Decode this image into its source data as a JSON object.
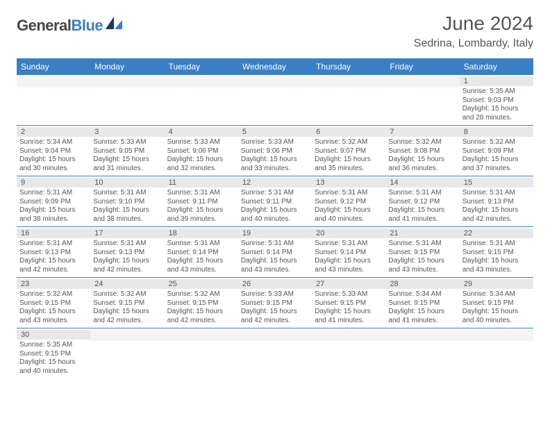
{
  "brand": {
    "general": "General",
    "blue": "Blue"
  },
  "colors": {
    "accent": "#3b7fc4",
    "band": "#e8e8e8",
    "text": "#555555",
    "divider": "#3b7fc4"
  },
  "fonts": {
    "title_pt": 28,
    "location_pt": 16,
    "weekday_pt": 12,
    "daynum_pt": 11,
    "body_pt": 10
  },
  "title": "June 2024",
  "location": "Sedrina, Lombardy, Italy",
  "weekdays": [
    "Sunday",
    "Monday",
    "Tuesday",
    "Wednesday",
    "Thursday",
    "Friday",
    "Saturday"
  ],
  "calendar": {
    "rows": 6,
    "cols": 7,
    "leading_blanks": 6,
    "days": [
      {
        "n": 1,
        "sunrise": "5:35 AM",
        "sunset": "9:03 PM",
        "daylight": "15 hours and 28 minutes."
      },
      {
        "n": 2,
        "sunrise": "5:34 AM",
        "sunset": "9:04 PM",
        "daylight": "15 hours and 30 minutes."
      },
      {
        "n": 3,
        "sunrise": "5:33 AM",
        "sunset": "9:05 PM",
        "daylight": "15 hours and 31 minutes."
      },
      {
        "n": 4,
        "sunrise": "5:33 AM",
        "sunset": "9:06 PM",
        "daylight": "15 hours and 32 minutes."
      },
      {
        "n": 5,
        "sunrise": "5:33 AM",
        "sunset": "9:06 PM",
        "daylight": "15 hours and 33 minutes."
      },
      {
        "n": 6,
        "sunrise": "5:32 AM",
        "sunset": "9:07 PM",
        "daylight": "15 hours and 35 minutes."
      },
      {
        "n": 7,
        "sunrise": "5:32 AM",
        "sunset": "9:08 PM",
        "daylight": "15 hours and 36 minutes."
      },
      {
        "n": 8,
        "sunrise": "5:32 AM",
        "sunset": "9:09 PM",
        "daylight": "15 hours and 37 minutes."
      },
      {
        "n": 9,
        "sunrise": "5:31 AM",
        "sunset": "9:09 PM",
        "daylight": "15 hours and 38 minutes."
      },
      {
        "n": 10,
        "sunrise": "5:31 AM",
        "sunset": "9:10 PM",
        "daylight": "15 hours and 38 minutes."
      },
      {
        "n": 11,
        "sunrise": "5:31 AM",
        "sunset": "9:11 PM",
        "daylight": "15 hours and 39 minutes."
      },
      {
        "n": 12,
        "sunrise": "5:31 AM",
        "sunset": "9:11 PM",
        "daylight": "15 hours and 40 minutes."
      },
      {
        "n": 13,
        "sunrise": "5:31 AM",
        "sunset": "9:12 PM",
        "daylight": "15 hours and 40 minutes."
      },
      {
        "n": 14,
        "sunrise": "5:31 AM",
        "sunset": "9:12 PM",
        "daylight": "15 hours and 41 minutes."
      },
      {
        "n": 15,
        "sunrise": "5:31 AM",
        "sunset": "9:13 PM",
        "daylight": "15 hours and 42 minutes."
      },
      {
        "n": 16,
        "sunrise": "5:31 AM",
        "sunset": "9:13 PM",
        "daylight": "15 hours and 42 minutes."
      },
      {
        "n": 17,
        "sunrise": "5:31 AM",
        "sunset": "9:13 PM",
        "daylight": "15 hours and 42 minutes."
      },
      {
        "n": 18,
        "sunrise": "5:31 AM",
        "sunset": "9:14 PM",
        "daylight": "15 hours and 43 minutes."
      },
      {
        "n": 19,
        "sunrise": "5:31 AM",
        "sunset": "9:14 PM",
        "daylight": "15 hours and 43 minutes."
      },
      {
        "n": 20,
        "sunrise": "5:31 AM",
        "sunset": "9:14 PM",
        "daylight": "15 hours and 43 minutes."
      },
      {
        "n": 21,
        "sunrise": "5:31 AM",
        "sunset": "9:15 PM",
        "daylight": "15 hours and 43 minutes."
      },
      {
        "n": 22,
        "sunrise": "5:31 AM",
        "sunset": "9:15 PM",
        "daylight": "15 hours and 43 minutes."
      },
      {
        "n": 23,
        "sunrise": "5:32 AM",
        "sunset": "9:15 PM",
        "daylight": "15 hours and 43 minutes."
      },
      {
        "n": 24,
        "sunrise": "5:32 AM",
        "sunset": "9:15 PM",
        "daylight": "15 hours and 42 minutes."
      },
      {
        "n": 25,
        "sunrise": "5:32 AM",
        "sunset": "9:15 PM",
        "daylight": "15 hours and 42 minutes."
      },
      {
        "n": 26,
        "sunrise": "5:33 AM",
        "sunset": "9:15 PM",
        "daylight": "15 hours and 42 minutes."
      },
      {
        "n": 27,
        "sunrise": "5:33 AM",
        "sunset": "9:15 PM",
        "daylight": "15 hours and 41 minutes."
      },
      {
        "n": 28,
        "sunrise": "5:34 AM",
        "sunset": "9:15 PM",
        "daylight": "15 hours and 41 minutes."
      },
      {
        "n": 29,
        "sunrise": "5:34 AM",
        "sunset": "9:15 PM",
        "daylight": "15 hours and 40 minutes."
      },
      {
        "n": 30,
        "sunrise": "5:35 AM",
        "sunset": "9:15 PM",
        "daylight": "15 hours and 40 minutes."
      }
    ],
    "labels": {
      "sunrise": "Sunrise:",
      "sunset": "Sunset:",
      "daylight": "Daylight:"
    }
  }
}
